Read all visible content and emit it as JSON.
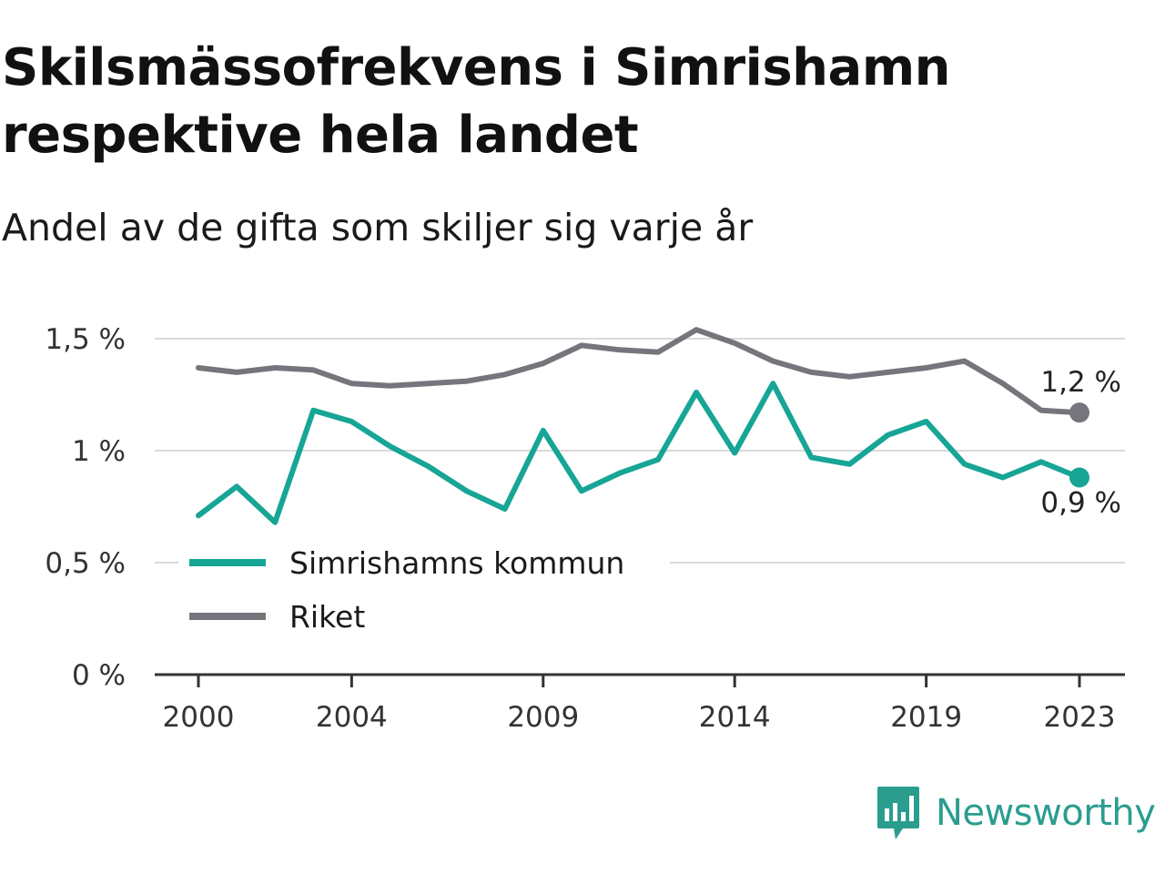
{
  "header": {
    "title_line1": "Skilsmässofrekvens i Simrishamn",
    "title_line2": "respektive hela landet",
    "subtitle": "Andel av de gifta som skiljer sig varje år"
  },
  "brand": {
    "name": "Newsworthy",
    "icon": "newsworthy-logo-icon",
    "color": "#2a9d8f"
  },
  "chart_data": {
    "type": "line",
    "x": [
      2000,
      2001,
      2002,
      2003,
      2004,
      2005,
      2006,
      2007,
      2008,
      2009,
      2010,
      2011,
      2012,
      2013,
      2014,
      2015,
      2016,
      2017,
      2018,
      2019,
      2020,
      2021,
      2022,
      2023
    ],
    "x_ticks": [
      2000,
      2004,
      2009,
      2014,
      2019,
      2023
    ],
    "x_tick_labels": [
      "2000",
      "2004",
      "2009",
      "2014",
      "2019",
      "2023"
    ],
    "y_ticks": [
      0,
      0.5,
      1,
      1.5
    ],
    "y_tick_labels": [
      "0 %",
      "0,5 %",
      "1 %",
      "1,5 %"
    ],
    "ylim": [
      0,
      1.58
    ],
    "grid": true,
    "legend_position": "bottom-left",
    "series": [
      {
        "name": "Simrishamns kommun",
        "color": "#17a596",
        "end_label": "0,9 %",
        "values": [
          0.71,
          0.84,
          0.68,
          1.18,
          1.13,
          1.02,
          0.93,
          0.82,
          0.74,
          1.09,
          0.82,
          0.9,
          0.96,
          1.26,
          0.99,
          1.3,
          0.97,
          0.94,
          1.07,
          1.13,
          0.94,
          0.88,
          0.95,
          0.88
        ]
      },
      {
        "name": "Riket",
        "color": "#76757c",
        "end_label": "1,2 %",
        "values": [
          1.37,
          1.35,
          1.37,
          1.36,
          1.3,
          1.29,
          1.3,
          1.31,
          1.34,
          1.39,
          1.47,
          1.45,
          1.44,
          1.54,
          1.48,
          1.4,
          1.35,
          1.33,
          1.35,
          1.37,
          1.4,
          1.3,
          1.18,
          1.17
        ]
      }
    ]
  }
}
